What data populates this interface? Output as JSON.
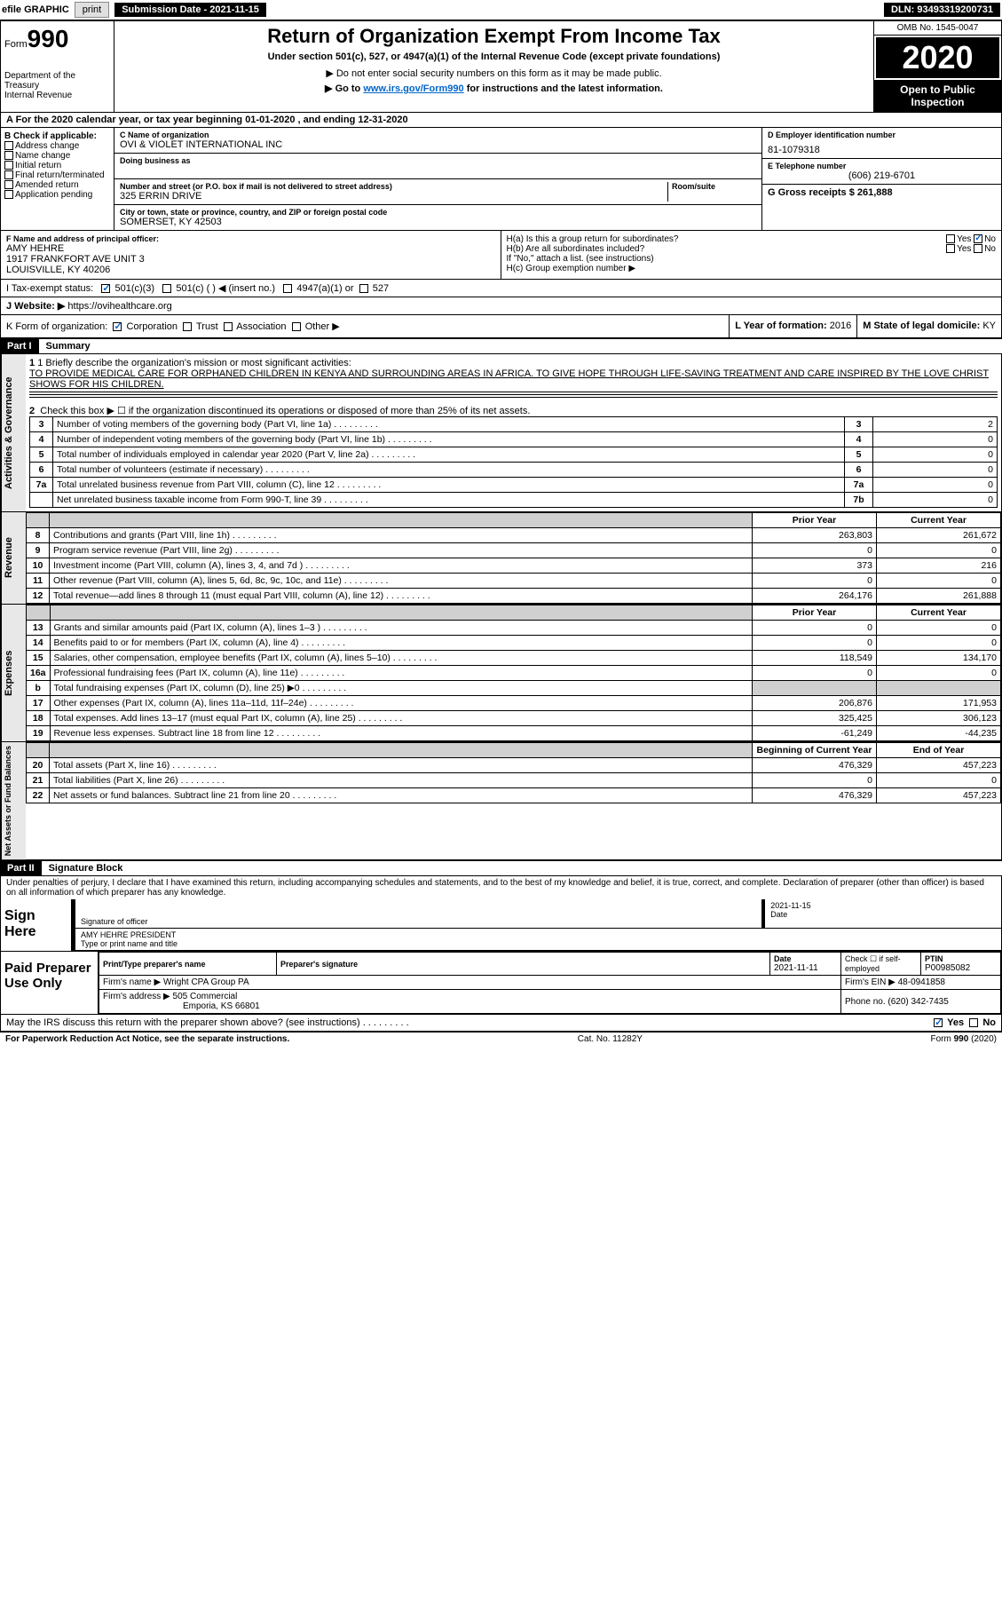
{
  "toolbar": {
    "efile": "efile GRAPHIC",
    "print": "print",
    "sub_label": "Submission Date - ",
    "sub_date": "2021-11-15",
    "dln_label": "DLN: ",
    "dln": "93493319200731"
  },
  "header": {
    "form_word": "Form",
    "form_num": "990",
    "dept1": "Department of the Treasury",
    "dept2": "Internal Revenue",
    "title": "Return of Organization Exempt From Income Tax",
    "subtitle": "Under section 501(c), 527, or 4947(a)(1) of the Internal Revenue Code (except private foundations)",
    "note1": "▶ Do not enter social security numbers on this form as it may be made public.",
    "note2_a": "▶ Go to ",
    "note2_link": "www.irs.gov/Form990",
    "note2_b": " for instructions and the latest information.",
    "omb": "OMB No. 1545-0047",
    "year": "2020",
    "open": "Open to Public Inspection"
  },
  "row_a": "A For the 2020 calendar year, or tax year beginning 01-01-2020   , and ending 12-31-2020",
  "box_b": {
    "title": "B Check if applicable:",
    "opts": [
      "Address change",
      "Name change",
      "Initial return",
      "Final return/terminated",
      "Amended return",
      "Application pending"
    ]
  },
  "box_c": {
    "name_label": "C Name of organization",
    "name": "OVI & VIOLET INTERNATIONAL INC",
    "dba_label": "Doing business as",
    "addr_label": "Number and street (or P.O. box if mail is not delivered to street address)",
    "room_label": "Room/suite",
    "addr": "325 ERRIN DRIVE",
    "city_label": "City or town, state or province, country, and ZIP or foreign postal code",
    "city": "SOMERSET, KY  42503"
  },
  "box_d": {
    "label": "D Employer identification number",
    "val": "81-1079318"
  },
  "box_e": {
    "label": "E Telephone number",
    "val": "(606) 219-6701"
  },
  "box_g": {
    "label": "G Gross receipts $ ",
    "val": "261,888"
  },
  "box_f": {
    "label": "F  Name and address of principal officer:",
    "name": "AMY HEHRE",
    "addr1": "1917 FRANKFORT AVE UNIT 3",
    "addr2": "LOUISVILLE, KY  40206"
  },
  "box_h": {
    "ha": "H(a)  Is this a group return for subordinates?",
    "hb": "H(b)  Are all subordinates included?",
    "hb_note": "If \"No,\" attach a list. (see instructions)",
    "hc": "H(c)  Group exemption number ▶",
    "yes": "Yes",
    "no": "No"
  },
  "box_i": {
    "label": "I   Tax-exempt status:",
    "o1": "501(c)(3)",
    "o2": "501(c) (  ) ◀ (insert no.)",
    "o3": "4947(a)(1) or",
    "o4": "527"
  },
  "box_j": {
    "label": "J   Website: ▶  ",
    "val": "https://ovihealthcare.org"
  },
  "box_k": {
    "label": "K Form of organization:",
    "o1": "Corporation",
    "o2": "Trust",
    "o3": "Association",
    "o4": "Other ▶"
  },
  "box_l": {
    "label": "L Year of formation: ",
    "val": "2016"
  },
  "box_m": {
    "label": "M State of legal domicile: ",
    "val": "KY"
  },
  "part1": {
    "num": "Part I",
    "title": "Summary"
  },
  "mission": {
    "q": "1  Briefly describe the organization's mission or most significant activities:",
    "text": "TO PROVIDE MEDICAL CARE FOR ORPHANED CHILDREN IN KENYA AND SURROUNDING AREAS IN AFRICA. TO GIVE HOPE THROUGH LIFE-SAVING TREATMENT AND CARE INSPIRED BY THE LOVE CHRIST SHOWS FOR HIS CHILDREN."
  },
  "line2": "Check this box ▶ ☐  if the organization discontinued its operations or disposed of more than 25% of its net assets.",
  "sections": {
    "gov": "Activities & Governance",
    "rev": "Revenue",
    "exp": "Expenses",
    "net": "Net Assets or Fund Balances"
  },
  "gov_rows": [
    {
      "n": "3",
      "d": "Number of voting members of the governing body (Part VI, line 1a)",
      "b": "3",
      "v": "2"
    },
    {
      "n": "4",
      "d": "Number of independent voting members of the governing body (Part VI, line 1b)",
      "b": "4",
      "v": "0"
    },
    {
      "n": "5",
      "d": "Total number of individuals employed in calendar year 2020 (Part V, line 2a)",
      "b": "5",
      "v": "0"
    },
    {
      "n": "6",
      "d": "Total number of volunteers (estimate if necessary)",
      "b": "6",
      "v": "0"
    },
    {
      "n": "7a",
      "d": "Total unrelated business revenue from Part VIII, column (C), line 12",
      "b": "7a",
      "v": "0"
    },
    {
      "n": "",
      "d": "Net unrelated business taxable income from Form 990-T, line 39",
      "b": "7b",
      "v": "0"
    }
  ],
  "col_headers": {
    "prior": "Prior Year",
    "current": "Current Year",
    "beg": "Beginning of Current Year",
    "end": "End of Year"
  },
  "rev_rows": [
    {
      "n": "8",
      "d": "Contributions and grants (Part VIII, line 1h)",
      "p": "263,803",
      "c": "261,672"
    },
    {
      "n": "9",
      "d": "Program service revenue (Part VIII, line 2g)",
      "p": "0",
      "c": "0"
    },
    {
      "n": "10",
      "d": "Investment income (Part VIII, column (A), lines 3, 4, and 7d )",
      "p": "373",
      "c": "216"
    },
    {
      "n": "11",
      "d": "Other revenue (Part VIII, column (A), lines 5, 6d, 8c, 9c, 10c, and 11e)",
      "p": "0",
      "c": "0"
    },
    {
      "n": "12",
      "d": "Total revenue—add lines 8 through 11 (must equal Part VIII, column (A), line 12)",
      "p": "264,176",
      "c": "261,888"
    }
  ],
  "exp_rows": [
    {
      "n": "13",
      "d": "Grants and similar amounts paid (Part IX, column (A), lines 1–3 )",
      "p": "0",
      "c": "0"
    },
    {
      "n": "14",
      "d": "Benefits paid to or for members (Part IX, column (A), line 4)",
      "p": "0",
      "c": "0"
    },
    {
      "n": "15",
      "d": "Salaries, other compensation, employee benefits (Part IX, column (A), lines 5–10)",
      "p": "118,549",
      "c": "134,170"
    },
    {
      "n": "16a",
      "d": "Professional fundraising fees (Part IX, column (A), line 11e)",
      "p": "0",
      "c": "0"
    },
    {
      "n": "b",
      "d": "Total fundraising expenses (Part IX, column (D), line 25) ▶0",
      "p": "",
      "c": "",
      "shade": true
    },
    {
      "n": "17",
      "d": "Other expenses (Part IX, column (A), lines 11a–11d, 11f–24e)",
      "p": "206,876",
      "c": "171,953"
    },
    {
      "n": "18",
      "d": "Total expenses. Add lines 13–17 (must equal Part IX, column (A), line 25)",
      "p": "325,425",
      "c": "306,123"
    },
    {
      "n": "19",
      "d": "Revenue less expenses. Subtract line 18 from line 12",
      "p": "-61,249",
      "c": "-44,235"
    }
  ],
  "net_rows": [
    {
      "n": "20",
      "d": "Total assets (Part X, line 16)",
      "p": "476,329",
      "c": "457,223"
    },
    {
      "n": "21",
      "d": "Total liabilities (Part X, line 26)",
      "p": "0",
      "c": "0"
    },
    {
      "n": "22",
      "d": "Net assets or fund balances. Subtract line 21 from line 20",
      "p": "476,329",
      "c": "457,223"
    }
  ],
  "part2": {
    "num": "Part II",
    "title": "Signature Block"
  },
  "penalties": "Under penalties of perjury, I declare that I have examined this return, including accompanying schedules and statements, and to the best of my knowledge and belief, it is true, correct, and complete. Declaration of preparer (other than officer) is based on all information of which preparer has any knowledge.",
  "sign": {
    "here": "Sign Here",
    "sig_label": "Signature of officer",
    "date_label": "Date",
    "date": "2021-11-15",
    "name": "AMY HEHRE  PRESIDENT",
    "name_label": "Type or print name and title"
  },
  "prep": {
    "title": "Paid Preparer Use Only",
    "h1": "Print/Type preparer's name",
    "h2": "Preparer's signature",
    "h3": "Date",
    "h3v": "2021-11-11",
    "h4": "Check ☐ if self-employed",
    "h5": "PTIN",
    "h5v": "P00985082",
    "firm_label": "Firm's name    ▶ ",
    "firm": "Wright CPA Group PA",
    "ein_label": "Firm's EIN ▶ ",
    "ein": "48-0941858",
    "addr_label": "Firm's address ▶ ",
    "addr": "505 Commercial",
    "addr2": "Emporia, KS  66801",
    "phone_label": "Phone no. ",
    "phone": "(620) 342-7435"
  },
  "discuss": "May the IRS discuss this return with the preparer shown above? (see instructions)",
  "footer": {
    "left": "For Paperwork Reduction Act Notice, see the separate instructions.",
    "mid": "Cat. No. 11282Y",
    "right": "Form 990 (2020)"
  }
}
